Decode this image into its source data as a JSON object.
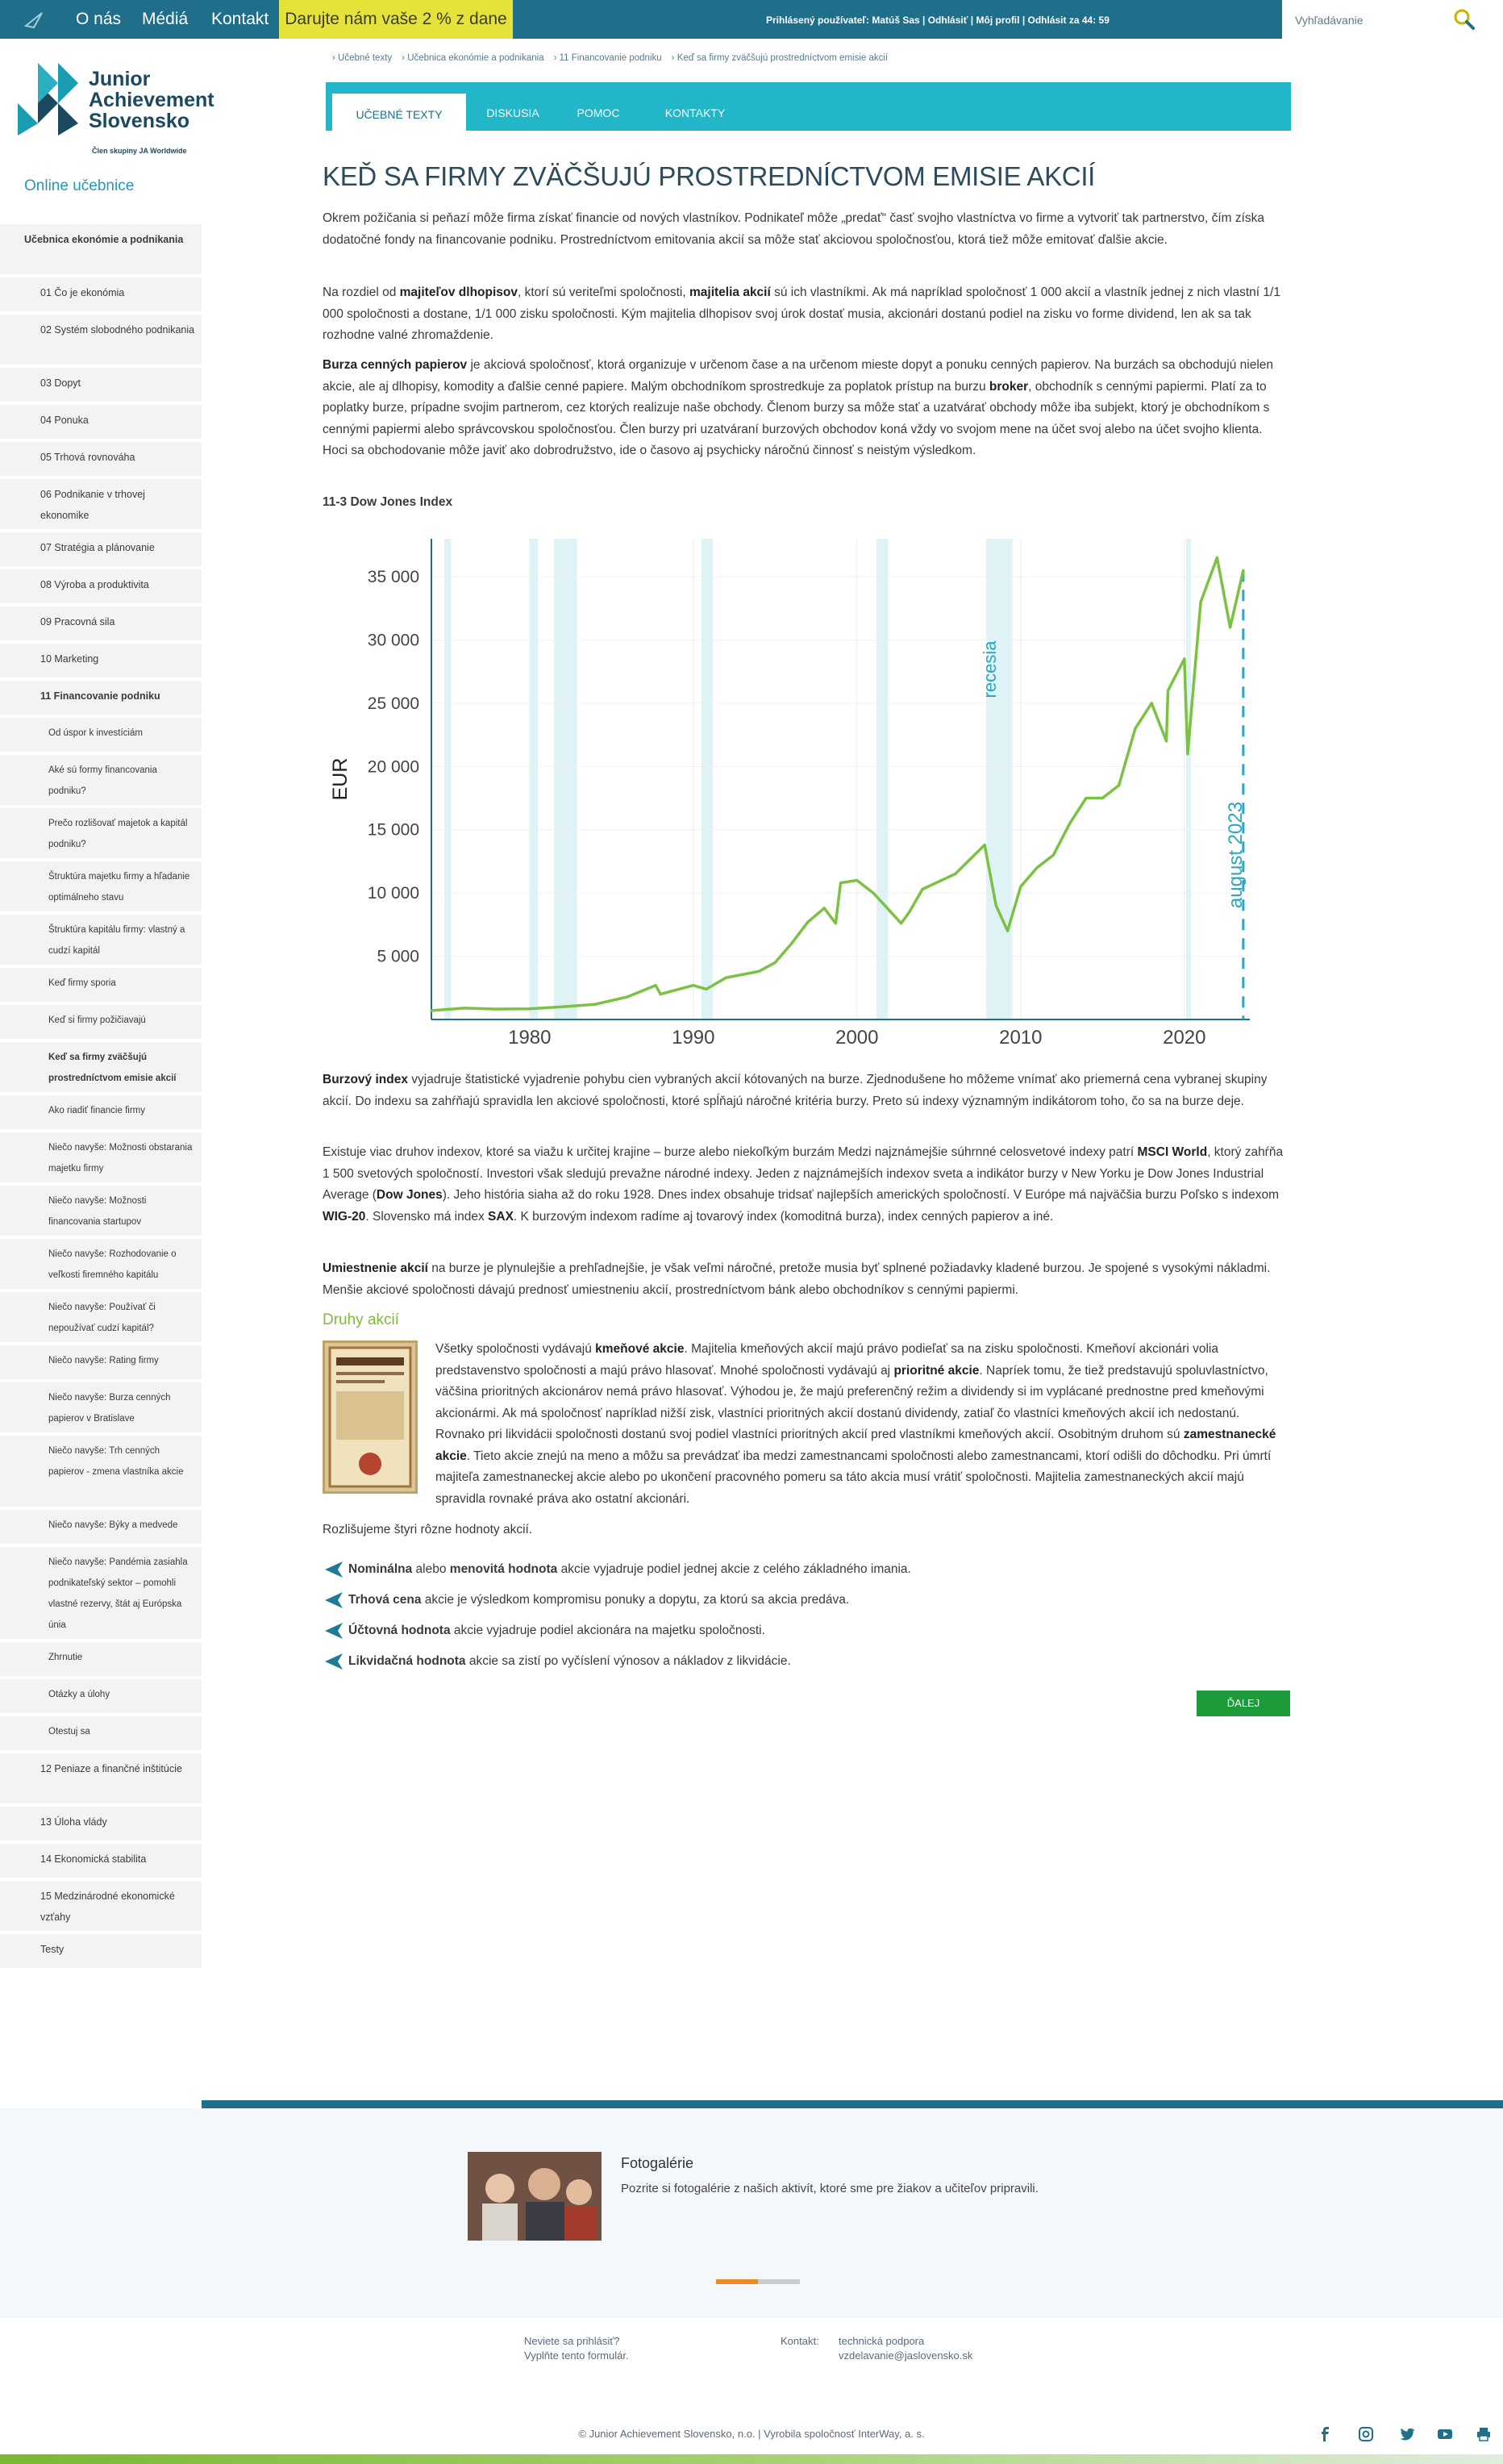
{
  "topbar": {
    "nav": [
      "O nás",
      "Médiá",
      "Kontakt"
    ],
    "donate": "Darujte nám vaše 2 % z dane",
    "user_info": "Prihlásený používateľ: Matúš Sas | Odhlásiť | Môj profil | Odhlásit za 44: 59",
    "search_placeholder": "Vyhľadávanie"
  },
  "logo": {
    "line1": "Junior",
    "line2": "Achievement",
    "line3": "Slovensko",
    "tagline": "Člen skupiny JA Worldwide"
  },
  "sidebar": {
    "heading": "Online učebnice",
    "items": [
      {
        "label": "Učebnica ekonómie a podnikania",
        "bold": true,
        "level": 0
      },
      {
        "label": "01 Čo je ekonómia",
        "level": 1
      },
      {
        "label": "02 Systém slobodného podnikania",
        "level": 1
      },
      {
        "label": "03 Dopyt",
        "level": 1
      },
      {
        "label": "04 Ponuka",
        "level": 1
      },
      {
        "label": "05 Trhová rovnováha",
        "level": 1
      },
      {
        "label": "06 Podnikanie v trhovej ekonomike",
        "level": 1
      },
      {
        "label": "07 Stratégia a plánovanie",
        "level": 1
      },
      {
        "label": "08 Výroba a produktivita",
        "level": 1
      },
      {
        "label": "09 Pracovná sila",
        "level": 1
      },
      {
        "label": "10 Marketing",
        "level": 1
      },
      {
        "label": "11 Financovanie podniku",
        "bold": true,
        "level": 1
      },
      {
        "label": "Od úspor k investíciám",
        "level": 2
      },
      {
        "label": "Aké sú formy financovania podniku?",
        "level": 2
      },
      {
        "label": "Prečo rozlišovať majetok a kapitál podniku?",
        "level": 2
      },
      {
        "label": "Štruktúra majetku firmy a hľadanie optimálneho stavu",
        "level": 2
      },
      {
        "label": "Štruktúra kapitálu firmy: vlastný a cudzí kapitál",
        "level": 2
      },
      {
        "label": "Keď firmy sporia",
        "level": 2
      },
      {
        "label": "Keď si firmy požičiavajú",
        "level": 2
      },
      {
        "label": "Keď sa firmy zväčšujú prostredníctvom emisie akcií",
        "bold": true,
        "level": 2
      },
      {
        "label": "Ako riadiť financie firmy",
        "level": 2
      },
      {
        "label": "Niečo navyše: Možnosti obstarania majetku firmy",
        "level": 2
      },
      {
        "label": "Niečo navyše: Možnosti financovania startupov",
        "level": 2
      },
      {
        "label": "Niečo navyše: Rozhodovanie o veľkosti firemného kapitálu",
        "level": 2
      },
      {
        "label": "Niečo navyše: Používať či nepoužívať cudzí kapitál?",
        "level": 2
      },
      {
        "label": "Niečo navyše: Rating firmy",
        "level": 2
      },
      {
        "label": "Niečo navyše: Burza cenných papierov v Bratislave",
        "level": 2
      },
      {
        "label": "Niečo navyše: Trh cenných papierov - zmena vlastníka akcie",
        "level": 2
      },
      {
        "label": "Niečo navyše: Býky a medvede",
        "level": 2
      },
      {
        "label": "Niečo navyše: Pandémia zasiahla podnikateľský sektor – pomohli vlastné rezervy, štát aj Európska únia",
        "level": 2
      },
      {
        "label": "Zhrnutie",
        "level": 2
      },
      {
        "label": "Otázky a úlohy",
        "level": 2
      },
      {
        "label": "Otestuj sa",
        "level": 2
      },
      {
        "label": "12 Peniaze a finančné inštitúcie",
        "level": 1
      },
      {
        "label": "13 Úloha vlády",
        "level": 1
      },
      {
        "label": "14 Ekonomická stabilita",
        "level": 1
      },
      {
        "label": "15 Medzinárodné ekonomické vzťahy",
        "level": 1
      },
      {
        "label": "Testy",
        "level": 1
      }
    ]
  },
  "breadcrumb": [
    "Učebné texty",
    "Učebnica ekonómie a podnikania",
    "11 Financovanie podniku",
    "Keď sa firmy zväčšujú prostredníctvom emisie akcií"
  ],
  "tabs": [
    "UČEBNÉ TEXTY",
    "DISKUSIA",
    "POMOC",
    "KONTAKTY"
  ],
  "article": {
    "title": "KEĎ SA FIRMY ZVÄČŠUJÚ PROSTREDNÍCTVOM EMISIE AKCIÍ",
    "p1": "Okrem požičania si peňazí môže firma získať financie od nových vlastníkov. Podnikateľ môže „predať“ časť svojho vlastníctva vo firme a vytvoriť tak partnerstvo, čím získa dodatočné fondy na financovanie podniku. Prostredníctvom emitovania akcií sa môže stať akciovou spoločnosťou, ktorá tiež môže emitovať ďalšie akcie.",
    "p2_a": "Na rozdiel od ",
    "p2_b": "majiteľov dlhopisov",
    "p2_c": ", ktorí sú veriteľmi spoločnosti, ",
    "p2_d": "majitelia akcií",
    "p2_e": " sú ich vlastníkmi. Ak má napríklad spoločnosť 1 000 akcií a vlastník jednej z nich vlastní 1/1 000 spoločnosti a dostane, 1/1 000 zisku spoločnosti. Kým majitelia dlhopisov svoj úrok dostať musia, akcionári dostanú podiel na zisku vo forme dividend, len ak sa tak rozhodne valné zhromaždenie.",
    "p3_a": "Burza cenných papierov",
    "p3_b": " je akciová spoločnosť, ktorá organizuje v určenom čase a na určenom mieste dopyt a ponuku cenných papierov. Na burzách sa obchodujú nielen akcie, ale aj dlhopisy, komodity a ďalšie cenné papiere. Malým obchodníkom sprostredkuje za poplatok prístup na burzu ",
    "p3_c": "broker",
    "p3_d": ", obchodník s cennými papiermi. Platí za to poplatky burze, prípadne svojim partnerom, cez ktorých realizuje naše obchody. Členom burzy sa môže stať a uzatvárať obchody môže iba subjekt, ktorý je obchodníkom s cennými papiermi alebo správcovskou spoločnosťou. Člen burzy pri uzatváraní burzových obchodov koná vždy vo svojom mene na účet svoj alebo na účet svojho klienta. Hoci sa obchodovanie môže javiť ako dobrodružstvo, ide o časovo aj psychicky náročnú činnosť s neistým výsledkom.",
    "chart_title": "11-3 Dow Jones Index",
    "p4_a": "Burzový index",
    "p4_b": " vyjadruje štatistické vyjadrenie pohybu cien vybraných akcií kótovaných na burze. Zjednodušene ho môžeme vnímať ako priemerná cena vybranej skupiny akcií. Do indexu sa zahŕňajú spravidla len akciové spoločnosti, ktoré spĺňajú náročné kritéria burzy. Preto sú indexy významným indikátorom toho, čo sa na burze deje.",
    "p5_a": "Existuje viac druhov indexov, ktoré sa viažu k určitej krajine – burze alebo niekoľkým burzám Medzi najznámejšie súhrnné celosvetové indexy patrí ",
    "p5_b": "MSCI World",
    "p5_c": ", ktorý zahŕňa 1 500 svetových spoločností. Investori však sledujú prevažne národné indexy. Jeden z najznámejších indexov sveta a indikátor burzy v New Yorku je Dow Jones Industrial Average (",
    "p5_d": "Dow Jones",
    "p5_e": "). Jeho história siaha až do roku 1928. Dnes index obsahuje tridsať najlepších amerických spoločností. V Európe má najväčšia burzu Poľsko s indexom ",
    "p5_f": "WIG-20",
    "p5_g": ". Slovensko má index ",
    "p5_h": "SAX",
    "p5_i": ". K burzovým indexom radíme aj tovarový index (komoditná burza), index cenných papierov a iné.",
    "p6_a": "Umiestnenie akcií",
    "p6_b": " na burze je plynulejšie a prehľadnejšie, je však veľmi náročné, pretože musia byť splnené požiadavky kladené burzou. Je spojené s vysokými nákladmi. Menšie akciové spoločnosti dávajú prednosť umiestneniu akcií, prostredníctvom bánk alebo obchodníkov s cennými papiermi.",
    "druhy_heading": "Druhy akcií",
    "p7_a": "Všetky spoločnosti vydávajú ",
    "p7_b": "kmeňové akcie",
    "p7_c": ". Majitelia kmeňových akcií majú právo podieľať sa na zisku spoločnosti. Kmeňoví akcionári volia predstavenstvo spoločnosti a majú právo hlasovať. Mnohé spoločnosti vydávajú aj ",
    "p7_d": "prioritné akcie",
    "p7_e": ". Napríek tomu, že tiež predstavujú spoluvlastníctvo, väčšina prioritných akcionárov nemá právo hlasovať. Výhodou je, že majú preferenčný režim a dividendy si im vyplácané prednostne pred kmeňovými akcionármi. Ak má spoločnosť napríklad nižší zisk, vlastníci prioritných akcií dostanú dividendy, zatiaľ čo vlastníci kmeňových akcií ich nedostanú. Rovnako pri likvidácii spoločnosti dostanú svoj podiel vlastníci prioritných akcií pred vlastníkmi kmeňových akcií. Osobitným druhom sú ",
    "p7_f": "zamestnanecké akcie",
    "p7_g": ". Tieto akcie znejú na meno a môžu sa prevádzať iba medzi zamestnancami spoločnosti alebo zamestnancami, ktorí odišli do dôchodku. Pri úmrtí majiteľa zamestnaneckej akcie alebo po ukončení pracovného pomeru sa táto akcia musí vrátiť spoločnosti. Majitelia zamestnaneckých akcií majú spravidla rovnaké práva ako ostatní akcionári.",
    "p8": "Rozlišujeme štyri rôzne hodnoty akcií.",
    "list": [
      {
        "b1": "Nominálna",
        "t1": " alebo ",
        "b2": "menovitá hodnota",
        "t2": " akcie vyjadruje podiel jednej akcie z celého základného imania."
      },
      {
        "b1": "Trhová cena",
        "t1": " akcie je výsledkom kompromisu ponuky a dopytu, za ktorú sa akcia predáva.",
        "b2": "",
        "t2": ""
      },
      {
        "b1": "Účtovná hodnota",
        "t1": " akcie vyjadruje podiel akcionára na majetku spoločnosti.",
        "b2": "",
        "t2": ""
      },
      {
        "b1": "Likvidačná hodnota",
        "t1": " akcie sa zistí po vyčíslení výnosov a nákladov z likvidácie.",
        "b2": "",
        "t2": ""
      }
    ],
    "next_button": "ĎALEJ"
  },
  "chart_data": {
    "type": "line",
    "title": "",
    "ylabel": "EUR",
    "xlabel": "",
    "xlim": [
      1974,
      2024
    ],
    "ylim": [
      0,
      38000
    ],
    "yticks": [
      5000,
      10000,
      15000,
      20000,
      25000,
      30000,
      35000
    ],
    "ytick_labels": [
      "5 000",
      "10 000",
      "15 000",
      "20 000",
      "25 000",
      "30 000",
      "35 000"
    ],
    "xticks": [
      1980,
      1990,
      2000,
      2010,
      2020
    ],
    "recession_bands": [
      [
        1974.8,
        1975.2
      ],
      [
        1980.0,
        1980.5
      ],
      [
        1981.5,
        1982.9
      ],
      [
        1990.5,
        1991.2
      ],
      [
        2001.2,
        2001.9
      ],
      [
        2007.9,
        2009.5
      ],
      [
        2020.1,
        2020.4
      ]
    ],
    "recession_label": "recesia",
    "marker": {
      "x": 2023.6,
      "label": "august 2023"
    },
    "color": "#7cc242",
    "series": [
      {
        "x": [
          1974,
          1976,
          1978,
          1980,
          1982,
          1984,
          1986,
          1987.7,
          1988,
          1990,
          1990.8,
          1992,
          1994,
          1995,
          1996,
          1997,
          1998,
          1998.7,
          1999,
          2000,
          2001,
          2002.7,
          2003.2,
          2004,
          2006,
          2007.8,
          2008.5,
          2009.2,
          2010,
          2011,
          2012,
          2013,
          2014,
          2015,
          2016,
          2017,
          2018,
          2018.9,
          2019,
          2020,
          2020.2,
          2021,
          2022,
          2022.8,
          2023.6
        ],
        "y": [
          700,
          900,
          820,
          850,
          1000,
          1200,
          1800,
          2700,
          2000,
          2700,
          2400,
          3300,
          3800,
          4500,
          6000,
          7700,
          8800,
          7600,
          10800,
          11000,
          10000,
          7600,
          8500,
          10300,
          11500,
          13800,
          9000,
          7000,
          10500,
          12000,
          13000,
          15500,
          17500,
          17500,
          18500,
          23000,
          25000,
          22000,
          26000,
          28500,
          21000,
          33000,
          36500,
          31000,
          35500
        ]
      }
    ]
  },
  "gallery": {
    "title": "Fotogalérie",
    "text": "Pozrite si fotogalérie z našich aktivít, ktoré sme pre žiakov a učiteľov pripravili."
  },
  "footer": {
    "login_q": "Neviete sa prihlásiť?",
    "login_form": "Vyplňte tento formulár.",
    "contact_label": "Kontakt:",
    "support": "technická podpora",
    "email": "vzdelavanie@jaslovensko.sk",
    "copyright": "© Junior Achievement Slovensko, n.o. | Vyrobila spoločnosť InterWay, a. s."
  }
}
